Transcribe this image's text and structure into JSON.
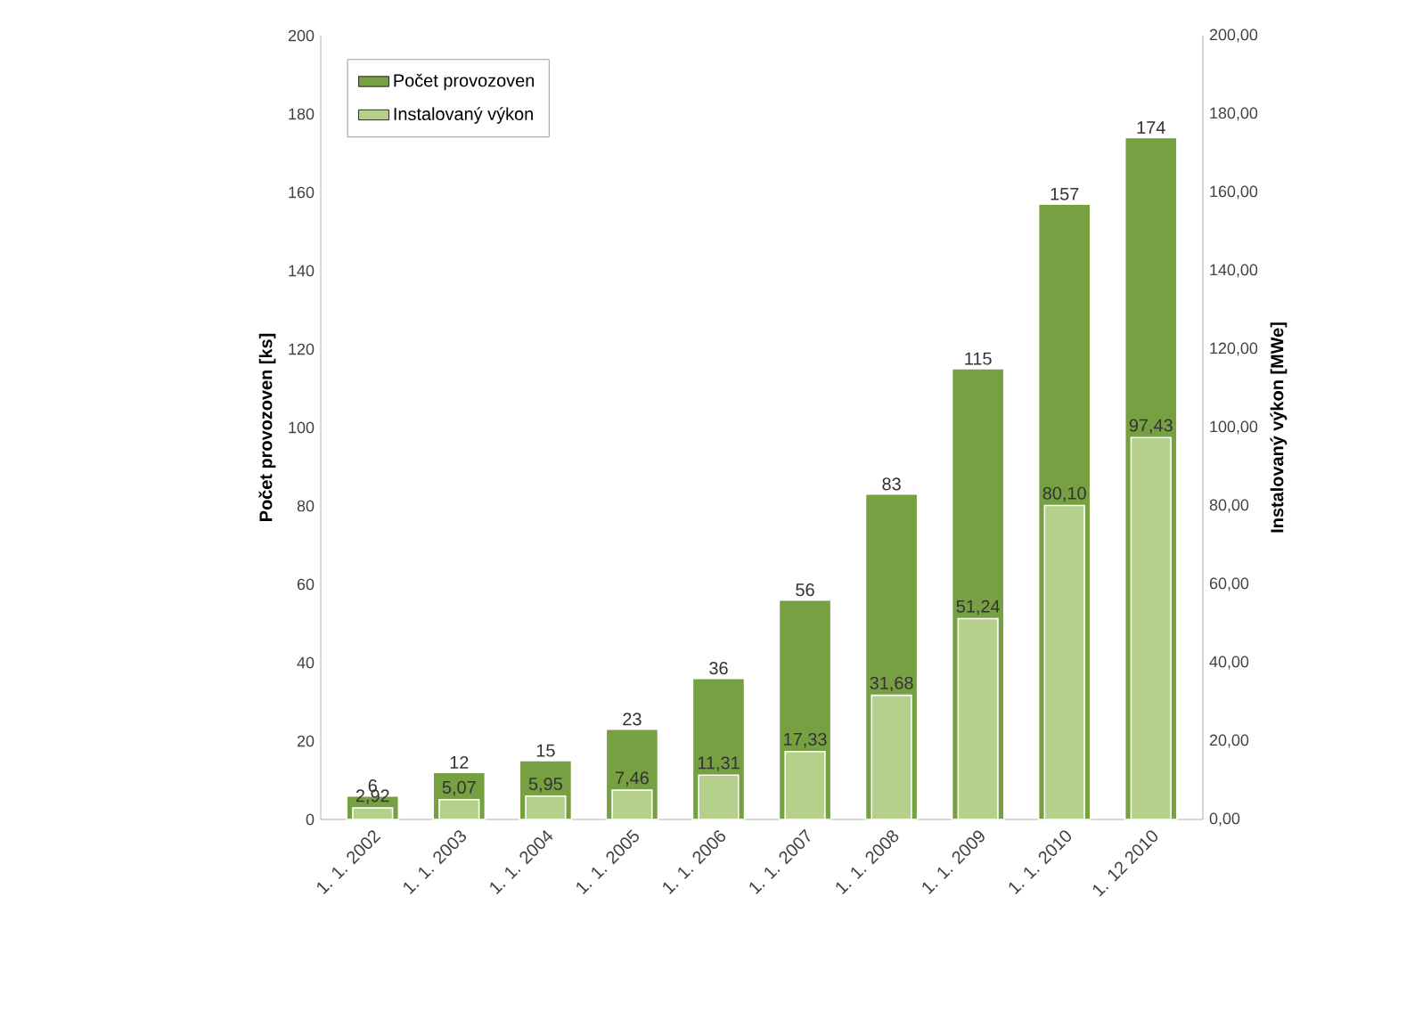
{
  "chart_data": {
    "type": "bar",
    "categories": [
      "1. 1. 2002",
      "1. 1. 2003",
      "1. 1. 2004",
      "1. 1. 2005",
      "1. 1. 2006",
      "1. 1. 2007",
      "1. 1. 2008",
      "1. 1. 2009",
      "1. 1. 2010",
      "1. 12 2010"
    ],
    "series": [
      {
        "name": "Počet provozoven",
        "color": "#77a043",
        "axis": "y",
        "values": [
          6,
          12,
          15,
          23,
          36,
          56,
          83,
          115,
          157,
          174
        ],
        "value_labels": [
          "6",
          "12",
          "15",
          "23",
          "36",
          "56",
          "83",
          "115",
          "157",
          "174"
        ]
      },
      {
        "name": "Instalovaný výkon",
        "color": "#b5d08a",
        "axis": "y2",
        "values": [
          2.92,
          5.07,
          5.95,
          7.46,
          11.31,
          17.33,
          31.68,
          51.24,
          80.1,
          97.43
        ],
        "value_labels": [
          "2,92",
          "5,07",
          "5,95",
          "7,46",
          "11,31",
          "17,33",
          "31,68",
          "51,24",
          "80,10",
          "97,43"
        ]
      }
    ],
    "ylabel": "Počet provozoven [ks]",
    "y2label": "Instalovaný výkon [MWe]",
    "ylim": [
      0,
      200
    ],
    "yticks": [
      0,
      20,
      40,
      60,
      80,
      100,
      120,
      140,
      160,
      180,
      200
    ],
    "y2lim": [
      0,
      200
    ],
    "y2ticks": [
      {
        "value": 0,
        "label": "0,00"
      },
      {
        "value": 20,
        "label": "20,00"
      },
      {
        "value": 40,
        "label": "40,00"
      },
      {
        "value": 60,
        "label": "60,00"
      },
      {
        "value": 80,
        "label": "80,00"
      },
      {
        "value": 100,
        "label": "100,00"
      },
      {
        "value": 120,
        "label": "120,00"
      },
      {
        "value": 140,
        "label": "140,00"
      },
      {
        "value": 160,
        "label": "160,00"
      },
      {
        "value": 180,
        "label": "180,00"
      },
      {
        "value": 200,
        "label": "200,00"
      }
    ],
    "legend": "top left"
  }
}
